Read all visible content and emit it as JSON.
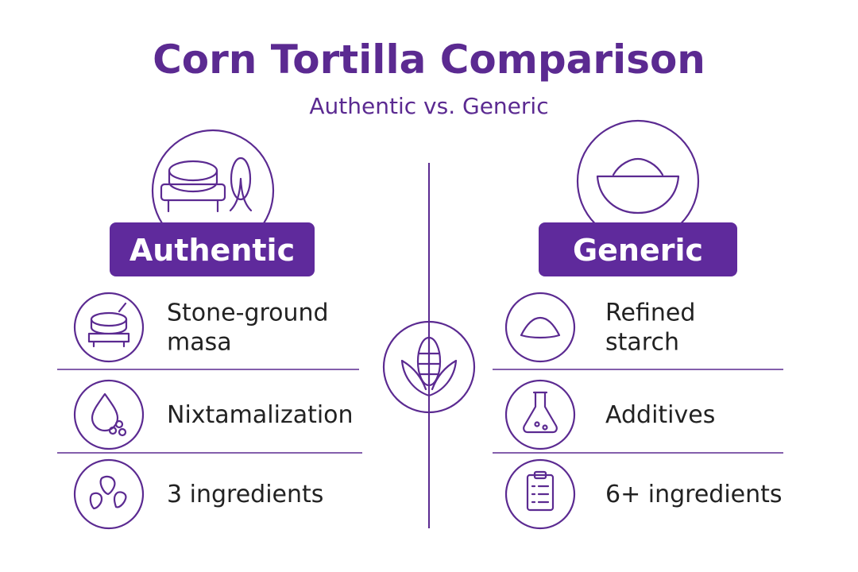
{
  "header": {
    "title": "Corn Tortilla Comparison",
    "subtitle": "Authentic vs. Generic"
  },
  "columns": [
    {
      "label": "Authentic",
      "items": [
        {
          "lines": [
            "Stone-ground",
            "masa"
          ]
        },
        {
          "lines": [
            "Nixtamalization"
          ]
        },
        {
          "lines": [
            "3 ingredients"
          ]
        }
      ]
    },
    {
      "label": "Generic",
      "items": [
        {
          "lines": [
            "Refined",
            "starch"
          ]
        },
        {
          "lines": [
            "Additives"
          ]
        },
        {
          "lines": [
            "6+ ingredients"
          ]
        }
      ]
    }
  ]
}
